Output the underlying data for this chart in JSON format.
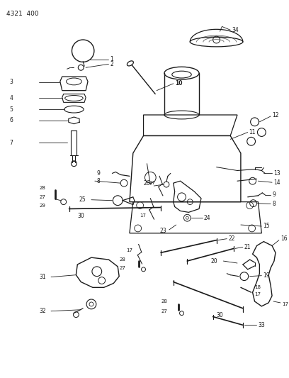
{
  "page_ref": "4321 400",
  "bg": "#ffffff",
  "lc": "#1a1a1a",
  "fig_w": 4.08,
  "fig_h": 5.33,
  "dpi": 100
}
